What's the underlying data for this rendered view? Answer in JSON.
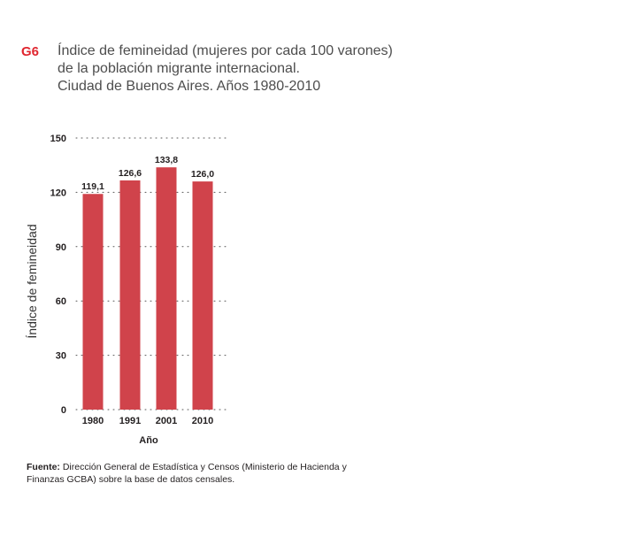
{
  "figure": {
    "code": "G6",
    "title_lines": [
      "Índice de femineidad (mujeres por cada 100 varones)",
      "de la población migrante internacional.",
      "Ciudad de Buenos  Aires. Años 1980-2010"
    ]
  },
  "chart_data": {
    "type": "bar",
    "categories": [
      "1980",
      "1991",
      "2001",
      "2010"
    ],
    "values": [
      119.1,
      126.6,
      133.8,
      126.0
    ],
    "value_labels": [
      "119,1",
      "126,6",
      "133,8",
      "126,0"
    ],
    "xlabel": "Año",
    "ylabel": "Índice de femineidad",
    "ylim": [
      0,
      150
    ],
    "yticks": [
      0,
      30,
      60,
      90,
      120,
      150
    ],
    "ytick_labels": [
      "0",
      "30",
      "60",
      "90",
      "120",
      "150"
    ],
    "grid": true,
    "colors": {
      "bar": "#d0434b",
      "grid": "#555555",
      "text": "#231f20"
    }
  },
  "source": {
    "label": "Fuente:",
    "text": " Dirección General de Estadística y Censos (Ministerio de Hacienda y Finanzas GCBA) sobre la base de datos censales."
  }
}
